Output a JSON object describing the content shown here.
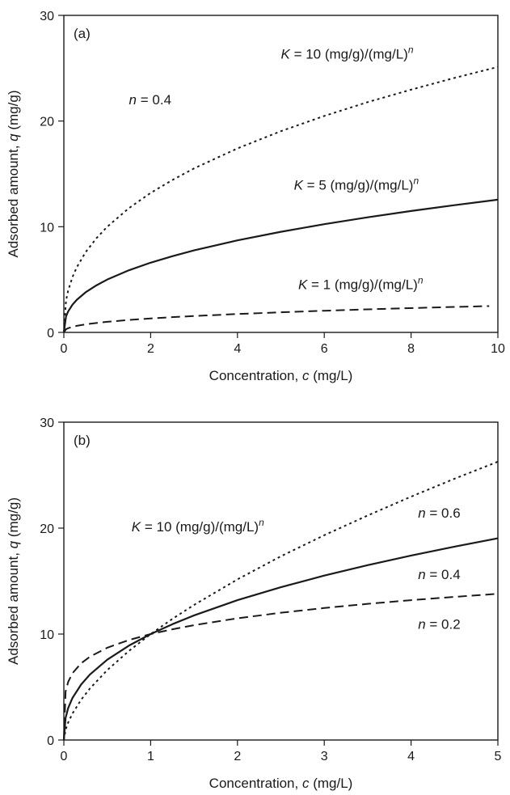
{
  "chart_data": [
    {
      "type": "line",
      "panel_label": "(a)",
      "xlabel": "Concentration, c (mg/L)",
      "ylabel": "Adsorbed amount, q (mg/g)",
      "xlim": [
        0,
        10
      ],
      "ylim": [
        0,
        30
      ],
      "xticks": [
        "0",
        "2",
        "4",
        "6",
        "8",
        "10"
      ],
      "yticks": [
        "0",
        "10",
        "20",
        "30"
      ],
      "grid": false,
      "x": [
        0,
        0.05,
        0.1,
        0.2,
        0.3,
        0.5,
        0.75,
        1,
        1.5,
        2,
        2.5,
        3,
        4,
        5,
        6,
        7,
        8,
        9,
        10
      ],
      "series": [
        {
          "name": "K = 10 (mg/g)/(mg/L)n",
          "style": "dotted",
          "x": [
            0,
            0.05,
            0.1,
            0.2,
            0.3,
            0.5,
            0.75,
            1,
            1.5,
            2,
            2.5,
            3,
            4,
            5,
            6,
            7,
            8,
            9,
            10
          ],
          "values": [
            0,
            3.02,
            3.98,
            5.25,
            6.18,
            7.58,
            8.91,
            10.0,
            11.76,
            13.2,
            14.42,
            15.52,
            17.41,
            19.04,
            20.48,
            21.79,
            22.97,
            24.08,
            25.12
          ]
        },
        {
          "name": "K = 5 (mg/g)/(mg/L)n",
          "style": "solid",
          "x": [
            0,
            0.05,
            0.1,
            0.2,
            0.3,
            0.5,
            0.75,
            1,
            1.5,
            2,
            2.5,
            3,
            4,
            5,
            6,
            7,
            8,
            9,
            10
          ],
          "values": [
            0,
            1.51,
            1.99,
            2.63,
            3.09,
            3.79,
            4.45,
            5.0,
            5.88,
            6.6,
            7.21,
            7.76,
            8.71,
            9.52,
            10.24,
            10.89,
            11.49,
            12.04,
            12.56
          ]
        },
        {
          "name": "K = 1 (mg/g)/(mg/L)n",
          "style": "dashed",
          "x": [
            0,
            0.05,
            0.1,
            0.2,
            0.3,
            0.5,
            0.75,
            1,
            1.5,
            2,
            2.5,
            3,
            4,
            5,
            6,
            7,
            8,
            9,
            9.8
          ],
          "values": [
            0,
            0.3,
            0.4,
            0.53,
            0.62,
            0.76,
            0.89,
            1.0,
            1.18,
            1.32,
            1.44,
            1.55,
            1.74,
            1.9,
            2.05,
            2.18,
            2.3,
            2.41,
            2.49
          ]
        }
      ],
      "annotations": [
        {
          "var": "n",
          "rest": " = 0.4",
          "sup": "",
          "x": 1.5,
          "y": 21.6
        },
        {
          "var": "K",
          "rest": " = 10 (mg/g)/(mg/L)",
          "sup": "n",
          "x": 5.0,
          "y": 25.9
        },
        {
          "var": "K",
          "rest": " = 5 (mg/g)/(mg/L)",
          "sup": "n",
          "x": 5.3,
          "y": 13.5
        },
        {
          "var": "K",
          "rest": " = 1 (mg/g)/(mg/L)",
          "sup": "n",
          "x": 5.4,
          "y": 4.1
        }
      ]
    },
    {
      "type": "line",
      "panel_label": "(b)",
      "xlabel": "Concentration, c (mg/L)",
      "ylabel": "Adsorbed amount, q (mg/g)",
      "xlim": [
        0,
        5
      ],
      "ylim": [
        0,
        30
      ],
      "xticks": [
        "0",
        "1",
        "2",
        "3",
        "4",
        "5"
      ],
      "yticks": [
        "0",
        "10",
        "20",
        "30"
      ],
      "grid": false,
      "series": [
        {
          "name": "n = 0.6",
          "style": "dotted",
          "x": [
            0,
            0.02,
            0.05,
            0.1,
            0.2,
            0.3,
            0.5,
            0.75,
            1,
            1.25,
            1.5,
            2,
            2.5,
            3,
            3.5,
            4,
            4.5,
            5
          ],
          "values": [
            0,
            0.96,
            1.66,
            2.51,
            3.81,
            4.86,
            6.6,
            8.41,
            10.0,
            11.43,
            12.75,
            15.16,
            17.34,
            19.33,
            21.19,
            22.97,
            24.66,
            26.27
          ]
        },
        {
          "name": "n = 0.4",
          "style": "solid",
          "x": [
            0,
            0.02,
            0.05,
            0.1,
            0.2,
            0.3,
            0.5,
            0.75,
            1,
            1.25,
            1.5,
            2,
            2.5,
            3,
            3.5,
            4,
            4.5,
            5
          ],
          "values": [
            0,
            2.09,
            3.02,
            3.98,
            5.25,
            6.18,
            7.58,
            8.91,
            10.0,
            10.93,
            11.76,
            13.2,
            14.42,
            15.52,
            16.5,
            17.41,
            18.25,
            19.04
          ]
        },
        {
          "name": "n = 0.2",
          "style": "dashed",
          "x": [
            0,
            0.02,
            0.05,
            0.1,
            0.2,
            0.3,
            0.5,
            0.75,
            1,
            1.25,
            1.5,
            2,
            2.5,
            3,
            3.5,
            4,
            4.5,
            5
          ],
          "values": [
            0,
            4.57,
            5.49,
            6.31,
            7.25,
            7.86,
            8.71,
            9.44,
            10.0,
            10.45,
            10.84,
            11.49,
            12.01,
            12.46,
            12.85,
            13.2,
            13.51,
            13.8
          ]
        }
      ],
      "annotations": [
        {
          "var": "K",
          "rest": " = 10 (mg/g)/(mg/L)",
          "sup": "n",
          "x": 0.78,
          "y": 19.7
        },
        {
          "var": "n",
          "rest": " = 0.6",
          "sup": "",
          "x": 4.08,
          "y": 21.0
        },
        {
          "var": "n",
          "rest": " = 0.4",
          "sup": "",
          "x": 4.08,
          "y": 15.2
        },
        {
          "var": "n",
          "rest": " = 0.2",
          "sup": "",
          "x": 4.08,
          "y": 10.5
        }
      ]
    }
  ]
}
